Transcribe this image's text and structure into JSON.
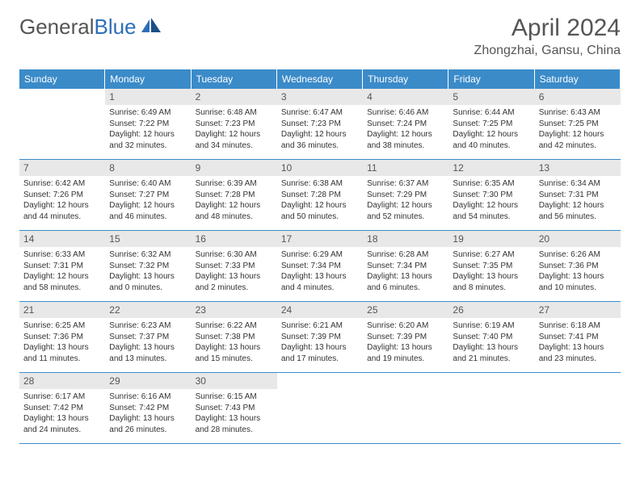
{
  "brand": {
    "part1": "General",
    "part2": "Blue"
  },
  "title": "April 2024",
  "location": "Zhongzhai, Gansu, China",
  "dayNames": [
    "Sunday",
    "Monday",
    "Tuesday",
    "Wednesday",
    "Thursday",
    "Friday",
    "Saturday"
  ],
  "colors": {
    "header_bg": "#3b8bc9",
    "header_text": "#ffffff",
    "daynum_bg": "#e8e8e8",
    "rule": "#3b8bc9",
    "body_text": "#333333",
    "title_text": "#555555"
  },
  "layout": {
    "cols": 7,
    "rows": 5,
    "start_offset": 1
  },
  "days": [
    {
      "n": "1",
      "sunrise": "6:49 AM",
      "sunset": "7:22 PM",
      "dl": "12 hours and 32 minutes."
    },
    {
      "n": "2",
      "sunrise": "6:48 AM",
      "sunset": "7:23 PM",
      "dl": "12 hours and 34 minutes."
    },
    {
      "n": "3",
      "sunrise": "6:47 AM",
      "sunset": "7:23 PM",
      "dl": "12 hours and 36 minutes."
    },
    {
      "n": "4",
      "sunrise": "6:46 AM",
      "sunset": "7:24 PM",
      "dl": "12 hours and 38 minutes."
    },
    {
      "n": "5",
      "sunrise": "6:44 AM",
      "sunset": "7:25 PM",
      "dl": "12 hours and 40 minutes."
    },
    {
      "n": "6",
      "sunrise": "6:43 AM",
      "sunset": "7:25 PM",
      "dl": "12 hours and 42 minutes."
    },
    {
      "n": "7",
      "sunrise": "6:42 AM",
      "sunset": "7:26 PM",
      "dl": "12 hours and 44 minutes."
    },
    {
      "n": "8",
      "sunrise": "6:40 AM",
      "sunset": "7:27 PM",
      "dl": "12 hours and 46 minutes."
    },
    {
      "n": "9",
      "sunrise": "6:39 AM",
      "sunset": "7:28 PM",
      "dl": "12 hours and 48 minutes."
    },
    {
      "n": "10",
      "sunrise": "6:38 AM",
      "sunset": "7:28 PM",
      "dl": "12 hours and 50 minutes."
    },
    {
      "n": "11",
      "sunrise": "6:37 AM",
      "sunset": "7:29 PM",
      "dl": "12 hours and 52 minutes."
    },
    {
      "n": "12",
      "sunrise": "6:35 AM",
      "sunset": "7:30 PM",
      "dl": "12 hours and 54 minutes."
    },
    {
      "n": "13",
      "sunrise": "6:34 AM",
      "sunset": "7:31 PM",
      "dl": "12 hours and 56 minutes."
    },
    {
      "n": "14",
      "sunrise": "6:33 AM",
      "sunset": "7:31 PM",
      "dl": "12 hours and 58 minutes."
    },
    {
      "n": "15",
      "sunrise": "6:32 AM",
      "sunset": "7:32 PM",
      "dl": "13 hours and 0 minutes."
    },
    {
      "n": "16",
      "sunrise": "6:30 AM",
      "sunset": "7:33 PM",
      "dl": "13 hours and 2 minutes."
    },
    {
      "n": "17",
      "sunrise": "6:29 AM",
      "sunset": "7:34 PM",
      "dl": "13 hours and 4 minutes."
    },
    {
      "n": "18",
      "sunrise": "6:28 AM",
      "sunset": "7:34 PM",
      "dl": "13 hours and 6 minutes."
    },
    {
      "n": "19",
      "sunrise": "6:27 AM",
      "sunset": "7:35 PM",
      "dl": "13 hours and 8 minutes."
    },
    {
      "n": "20",
      "sunrise": "6:26 AM",
      "sunset": "7:36 PM",
      "dl": "13 hours and 10 minutes."
    },
    {
      "n": "21",
      "sunrise": "6:25 AM",
      "sunset": "7:36 PM",
      "dl": "13 hours and 11 minutes."
    },
    {
      "n": "22",
      "sunrise": "6:23 AM",
      "sunset": "7:37 PM",
      "dl": "13 hours and 13 minutes."
    },
    {
      "n": "23",
      "sunrise": "6:22 AM",
      "sunset": "7:38 PM",
      "dl": "13 hours and 15 minutes."
    },
    {
      "n": "24",
      "sunrise": "6:21 AM",
      "sunset": "7:39 PM",
      "dl": "13 hours and 17 minutes."
    },
    {
      "n": "25",
      "sunrise": "6:20 AM",
      "sunset": "7:39 PM",
      "dl": "13 hours and 19 minutes."
    },
    {
      "n": "26",
      "sunrise": "6:19 AM",
      "sunset": "7:40 PM",
      "dl": "13 hours and 21 minutes."
    },
    {
      "n": "27",
      "sunrise": "6:18 AM",
      "sunset": "7:41 PM",
      "dl": "13 hours and 23 minutes."
    },
    {
      "n": "28",
      "sunrise": "6:17 AM",
      "sunset": "7:42 PM",
      "dl": "13 hours and 24 minutes."
    },
    {
      "n": "29",
      "sunrise": "6:16 AM",
      "sunset": "7:42 PM",
      "dl": "13 hours and 26 minutes."
    },
    {
      "n": "30",
      "sunrise": "6:15 AM",
      "sunset": "7:43 PM",
      "dl": "13 hours and 28 minutes."
    }
  ],
  "labels": {
    "sunrise_prefix": "Sunrise: ",
    "sunset_prefix": "Sunset: ",
    "daylight_prefix": "Daylight: "
  }
}
